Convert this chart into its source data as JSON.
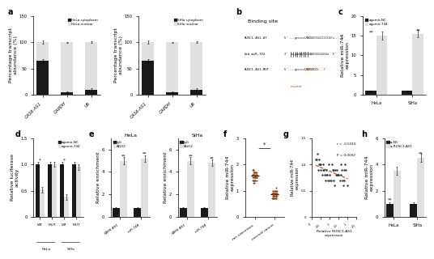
{
  "panel_a_hela": {
    "categories": [
      "GAS6-AS1",
      "GAPDH",
      "U6"
    ],
    "cytoplasm": [
      65,
      5,
      10
    ],
    "nuclear": [
      35,
      95,
      90
    ],
    "cytoplasm_err": [
      3,
      1,
      2
    ],
    "nuclear_err": [
      3,
      1,
      2
    ],
    "ylabel": "Percentage transcript\nabundance (%)",
    "ylim": [
      0,
      150
    ],
    "legend1": "HeLa cytoplasm",
    "legend2": "HeLa nuclear"
  },
  "panel_a_siha": {
    "categories": [
      "GAS6-AS1",
      "GAPDH",
      "U6"
    ],
    "cytoplasm": [
      65,
      5,
      10
    ],
    "nuclear": [
      35,
      95,
      90
    ],
    "cytoplasm_err": [
      3,
      1,
      2
    ],
    "nuclear_err": [
      3,
      1,
      2
    ],
    "ylabel": "Percentage transcript\nabundance (%)",
    "ylim": [
      0,
      150
    ],
    "legend1": "SiHa cytoplasm",
    "legend2": "SiHa nuclear"
  },
  "panel_c": {
    "categories": [
      "HeLa",
      "SiHa"
    ],
    "nc_values": [
      1.0,
      1.0
    ],
    "agomir_values": [
      15.0,
      15.5
    ],
    "nc_err": [
      0.1,
      0.1
    ],
    "agomir_err": [
      1.0,
      1.0
    ],
    "ylabel": "Relative miR-744\nexpression",
    "ylim": [
      0,
      20
    ],
    "legend1": "agomir-NC",
    "legend2": "agomir-744"
  },
  "panel_d": {
    "nc_values": [
      1.0,
      1.0,
      1.0,
      1.0
    ],
    "agomir_values": [
      0.52,
      1.0,
      0.38,
      0.95
    ],
    "nc_err": [
      0.05,
      0.05,
      0.05,
      0.05
    ],
    "agomir_err": [
      0.05,
      0.05,
      0.05,
      0.05
    ],
    "ylabel": "Relative luciferase\nactivity",
    "ylim": [
      0,
      1.5
    ],
    "legend1": "agomir-NC",
    "legend2": "agomir-744",
    "group_labels": [
      "HeLa",
      "SiHa"
    ]
  },
  "panel_e_hela": {
    "categories": [
      "GAS6-AS1",
      "miR-744"
    ],
    "igg_values": [
      0.8,
      0.8
    ],
    "ago2_values": [
      5.0,
      5.2
    ],
    "igg_err": [
      0.1,
      0.1
    ],
    "ago2_err": [
      0.3,
      0.3
    ],
    "title": "HeLa",
    "ylabel": "Relative enrichment",
    "ylim": [
      0,
      7
    ],
    "legend1": "IgG",
    "legend2": "AGO2"
  },
  "panel_e_siha": {
    "categories": [
      "GAS6-AS1",
      "miR-744"
    ],
    "igg_values": [
      0.8,
      0.8
    ],
    "ago2_values": [
      5.0,
      4.8
    ],
    "igg_err": [
      0.1,
      0.1
    ],
    "ago2_err": [
      0.3,
      0.3
    ],
    "title": "SiHa",
    "ylabel": "Relative enrichment",
    "ylim": [
      0,
      7
    ],
    "legend1": "IgG",
    "legend2": "AGO2"
  },
  "panel_f": {
    "non_cancerous": [
      1.5,
      1.6,
      1.7,
      1.4,
      1.3,
      1.8,
      1.6,
      1.5,
      1.7,
      1.6,
      1.4,
      1.5,
      1.6,
      1.7,
      1.8,
      1.4,
      1.3,
      1.5,
      1.6,
      1.7,
      1.5,
      1.6,
      1.4,
      1.5,
      1.7,
      1.6,
      1.8,
      1.5,
      1.4,
      1.6,
      1.7,
      1.5,
      1.6,
      1.4,
      1.5,
      1.7,
      1.6,
      1.8,
      1.5,
      1.4,
      1.6,
      1.7,
      1.5,
      1.6,
      1.4
    ],
    "cervical_cancer": [
      0.9,
      0.8,
      1.0,
      0.7,
      0.9,
      0.8,
      1.1,
      0.9,
      0.8,
      0.7,
      1.0,
      0.9,
      0.8,
      0.7,
      0.9,
      1.0,
      0.8,
      0.9,
      0.7,
      0.8,
      0.9,
      1.0,
      0.8,
      0.7,
      0.9,
      0.8,
      1.0,
      0.9,
      0.7,
      0.8,
      0.9,
      1.0,
      0.8,
      0.7,
      0.9,
      0.8,
      1.0,
      0.9,
      0.7,
      0.8,
      0.9,
      1.0,
      0.8,
      0.7,
      0.9
    ],
    "ylabel": "Relative miR-744\nexpression",
    "ylim": [
      0,
      3
    ],
    "xticklabels": [
      "non-cancerous",
      "cervical cancer"
    ],
    "dot_color": "#8B4513"
  },
  "panel_g": {
    "x": [
      0.2,
      0.4,
      0.6,
      0.8,
      1.0,
      1.2,
      1.4,
      1.6,
      1.8,
      0.3,
      0.5,
      0.7,
      0.9,
      1.1,
      1.3,
      1.5,
      1.7,
      1.9,
      0.25,
      0.45,
      0.65,
      0.85,
      1.05,
      1.25,
      1.45,
      1.65,
      1.85,
      0.35,
      0.55,
      0.75,
      0.95,
      1.15,
      1.35,
      1.55,
      1.75,
      0.4,
      0.6,
      0.8,
      1.0,
      1.2,
      1.4,
      1.6,
      1.8,
      2.0,
      0.5
    ],
    "y": [
      1.1,
      1.0,
      0.9,
      0.8,
      0.7,
      0.9,
      0.8,
      1.0,
      0.9,
      1.2,
      0.9,
      0.8,
      0.7,
      1.0,
      0.9,
      0.8,
      0.7,
      0.9,
      1.1,
      1.0,
      0.9,
      0.8,
      0.7,
      0.6,
      0.8,
      0.9,
      1.0,
      0.9,
      0.8,
      0.7,
      1.0,
      0.9,
      0.8,
      0.7,
      0.6,
      1.1,
      1.0,
      0.9,
      0.8,
      0.7,
      0.9,
      0.8,
      0.7,
      0.6,
      1.0
    ],
    "r_label": "r = -0.5310",
    "p_label": "P = 0.0002",
    "xlabel": "Relative RUSC1-AS1\nexpression",
    "ylabel": "Relative miR-744\nexpression",
    "xlim": [
      0,
      2.5
    ],
    "ylim": [
      0,
      1.5
    ],
    "dot_color": "#333333",
    "line_color": "#cc4400"
  },
  "panel_h": {
    "categories": [
      "HeLa",
      "SiHa"
    ],
    "nc_values": [
      1.0,
      1.0
    ],
    "si_values": [
      3.5,
      4.5
    ],
    "nc_err": [
      0.1,
      0.1
    ],
    "si_err": [
      0.3,
      0.3
    ],
    "ylabel": "Relative miR-744\nexpression",
    "ylim": [
      0,
      6
    ],
    "legend1": "si-NC",
    "legend2": "si-RUSC1-AS1"
  },
  "colors": {
    "black": "#1a1a1a",
    "light_gray": "#e0e0e0",
    "orange_red": "#cc4400"
  }
}
